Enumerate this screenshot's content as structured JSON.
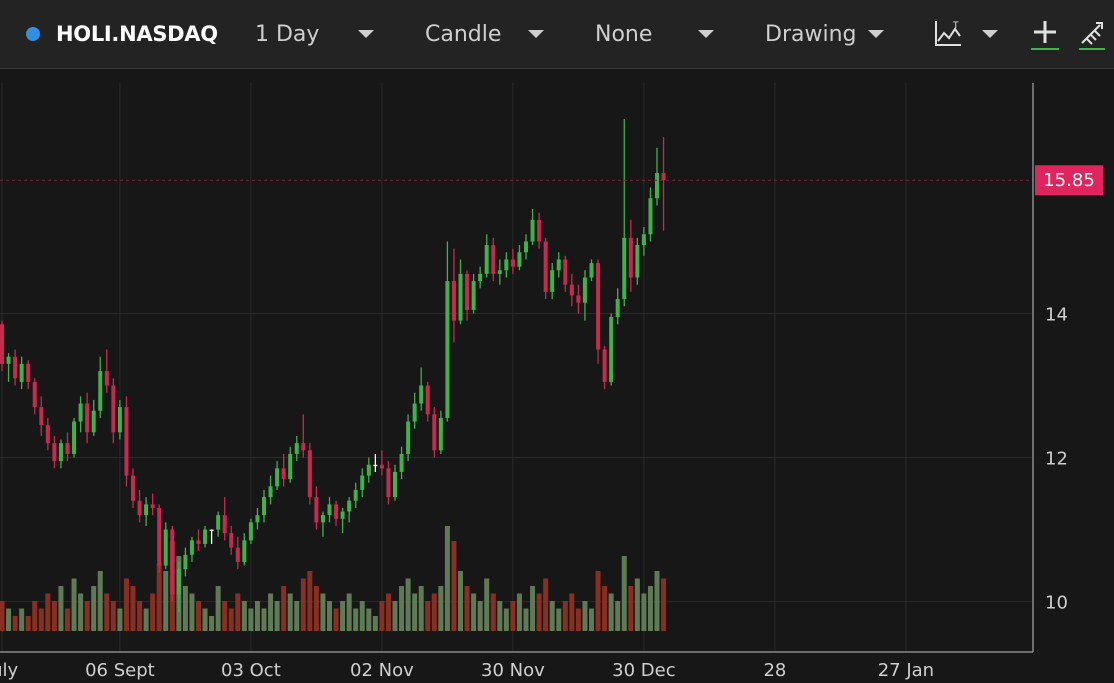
{
  "toolbar": {
    "status_color": "#2f8fe0",
    "symbol": "HOLI.NASDAQ",
    "interval": "1 Day",
    "chart_style": "Candle",
    "study": "None",
    "drawing": "Drawing",
    "icons": [
      "chart-type-icon",
      "chevron-down-icon",
      "crosshair-plus-icon",
      "drawing-tools-icon"
    ]
  },
  "chart_data": {
    "type": "candlestick",
    "ylim": [
      9.3,
      17.2
    ],
    "yticks": [
      10,
      12,
      14
    ],
    "last_price": 15.85,
    "last_price_label": "15.85",
    "xticks": [
      {
        "label": "July",
        "index": 0
      },
      {
        "label": "06 Sept",
        "index": 18
      },
      {
        "label": "03 Oct",
        "index": 38
      },
      {
        "label": "02 Nov",
        "index": 58
      },
      {
        "label": "30 Nov",
        "index": 78
      },
      {
        "label": "30 Dec",
        "index": 98
      },
      {
        "label": "28",
        "index": 118
      },
      {
        "label": "27 Jan",
        "index": 138
      }
    ],
    "colors": {
      "up": "#3fb24a",
      "down": "#c8294e",
      "doji": "#ffffff",
      "vol_up": "#5f7a55",
      "vol_down": "#8a2e22",
      "badge": "#e0245e"
    },
    "candles": [
      [
        13.85,
        13.9,
        13.2,
        13.3,
        4
      ],
      [
        13.3,
        13.45,
        13.05,
        13.4,
        3
      ],
      [
        13.4,
        13.5,
        13.0,
        13.1,
        2
      ],
      [
        13.05,
        13.4,
        12.95,
        13.3,
        3
      ],
      [
        13.3,
        13.35,
        12.95,
        13.05,
        2
      ],
      [
        13.05,
        13.1,
        12.6,
        12.7,
        4
      ],
      [
        12.7,
        12.85,
        12.3,
        12.45,
        3
      ],
      [
        12.45,
        12.55,
        12.1,
        12.2,
        5
      ],
      [
        12.2,
        12.3,
        11.85,
        11.95,
        4
      ],
      [
        11.95,
        12.25,
        11.85,
        12.2,
        6
      ],
      [
        12.2,
        12.35,
        11.95,
        12.05,
        3
      ],
      [
        12.05,
        12.55,
        12.0,
        12.5,
        7
      ],
      [
        12.5,
        12.85,
        12.35,
        12.75,
        5
      ],
      [
        12.75,
        12.9,
        12.2,
        12.35,
        4
      ],
      [
        12.35,
        12.8,
        12.3,
        12.65,
        6
      ],
      [
        12.65,
        13.4,
        12.55,
        13.2,
        8
      ],
      [
        13.2,
        13.5,
        12.9,
        13.0,
        5
      ],
      [
        13.0,
        13.1,
        12.2,
        12.35,
        4
      ],
      [
        12.35,
        12.8,
        12.25,
        12.7,
        3
      ],
      [
        12.7,
        12.85,
        11.6,
        11.75,
        7
      ],
      [
        11.75,
        11.85,
        11.3,
        11.4,
        6
      ],
      [
        11.4,
        11.55,
        11.1,
        11.2,
        4
      ],
      [
        11.2,
        11.45,
        11.05,
        11.35,
        3
      ],
      [
        11.35,
        11.5,
        11.2,
        11.3,
        5
      ],
      [
        11.3,
        11.35,
        10.4,
        10.5,
        9
      ],
      [
        10.5,
        11.1,
        10.45,
        11.0,
        8
      ],
      [
        11.0,
        11.05,
        10.0,
        10.1,
        12
      ],
      [
        10.1,
        10.55,
        9.85,
        10.45,
        10
      ],
      [
        10.45,
        10.75,
        10.35,
        10.65,
        6
      ],
      [
        10.65,
        10.9,
        10.55,
        10.85,
        5
      ],
      [
        10.85,
        11.0,
        10.7,
        10.8,
        4
      ],
      [
        10.8,
        11.05,
        10.75,
        11.0,
        3
      ],
      [
        11.0,
        11.0,
        10.8,
        11.0,
        2
      ],
      [
        11.0,
        11.25,
        10.9,
        11.2,
        6
      ],
      [
        11.2,
        11.45,
        10.85,
        10.95,
        4
      ],
      [
        10.95,
        11.05,
        10.65,
        10.75,
        3
      ],
      [
        10.75,
        10.9,
        10.45,
        10.55,
        5
      ],
      [
        10.55,
        10.95,
        10.5,
        10.85,
        4
      ],
      [
        10.85,
        11.15,
        10.8,
        11.1,
        3
      ],
      [
        11.1,
        11.3,
        11.0,
        11.2,
        4
      ],
      [
        11.2,
        11.55,
        11.1,
        11.45,
        3
      ],
      [
        11.45,
        11.75,
        11.35,
        11.6,
        5
      ],
      [
        11.6,
        11.95,
        11.55,
        11.85,
        4
      ],
      [
        11.85,
        12.05,
        11.6,
        11.7,
        6
      ],
      [
        11.7,
        12.15,
        11.65,
        12.05,
        5
      ],
      [
        12.05,
        12.3,
        11.95,
        12.2,
        4
      ],
      [
        12.2,
        12.6,
        12.0,
        12.1,
        7
      ],
      [
        12.1,
        12.2,
        11.35,
        11.45,
        8
      ],
      [
        11.45,
        11.6,
        11.0,
        11.1,
        6
      ],
      [
        11.1,
        11.25,
        10.9,
        11.2,
        5
      ],
      [
        11.2,
        11.45,
        11.1,
        11.35,
        4
      ],
      [
        11.35,
        11.4,
        11.05,
        11.15,
        3
      ],
      [
        11.15,
        11.3,
        10.95,
        11.25,
        4
      ],
      [
        11.25,
        11.45,
        11.1,
        11.4,
        5
      ],
      [
        11.4,
        11.65,
        11.3,
        11.55,
        3
      ],
      [
        11.55,
        11.85,
        11.45,
        11.75,
        4
      ],
      [
        11.75,
        12.0,
        11.65,
        11.9,
        3
      ],
      [
        11.9,
        12.05,
        11.8,
        11.9,
        2
      ],
      [
        11.9,
        12.1,
        11.75,
        11.85,
        4
      ],
      [
        11.85,
        11.95,
        11.35,
        11.45,
        5
      ],
      [
        11.45,
        11.9,
        11.4,
        11.8,
        4
      ],
      [
        11.8,
        12.15,
        11.7,
        12.05,
        6
      ],
      [
        12.05,
        12.6,
        11.95,
        12.5,
        7
      ],
      [
        12.5,
        12.9,
        12.4,
        12.75,
        5
      ],
      [
        12.75,
        13.25,
        12.65,
        13.0,
        6
      ],
      [
        13.0,
        13.05,
        12.5,
        12.6,
        4
      ],
      [
        12.6,
        12.7,
        12.0,
        12.1,
        5
      ],
      [
        12.1,
        12.65,
        12.05,
        12.55,
        6
      ],
      [
        12.55,
        15.0,
        12.5,
        14.45,
        14
      ],
      [
        14.45,
        14.9,
        13.6,
        13.9,
        12
      ],
      [
        13.9,
        14.75,
        13.85,
        14.55,
        8
      ],
      [
        14.55,
        14.6,
        13.9,
        14.05,
        6
      ],
      [
        14.05,
        14.55,
        14.0,
        14.45,
        5
      ],
      [
        14.45,
        14.65,
        14.35,
        14.55,
        4
      ],
      [
        14.55,
        15.1,
        14.5,
        14.95,
        7
      ],
      [
        14.95,
        15.05,
        14.45,
        14.55,
        5
      ],
      [
        14.55,
        14.75,
        14.4,
        14.6,
        4
      ],
      [
        14.6,
        14.85,
        14.5,
        14.75,
        3
      ],
      [
        14.75,
        14.9,
        14.55,
        14.65,
        4
      ],
      [
        14.65,
        14.95,
        14.6,
        14.85,
        5
      ],
      [
        14.85,
        15.1,
        14.75,
        15.0,
        3
      ],
      [
        15.0,
        15.45,
        14.95,
        15.3,
        6
      ],
      [
        15.3,
        15.4,
        14.9,
        15.0,
        5
      ],
      [
        15.0,
        15.05,
        14.2,
        14.3,
        7
      ],
      [
        14.3,
        14.7,
        14.2,
        14.6,
        4
      ],
      [
        14.6,
        14.85,
        14.5,
        14.75,
        3
      ],
      [
        14.75,
        14.8,
        14.3,
        14.4,
        4
      ],
      [
        14.4,
        14.55,
        14.1,
        14.25,
        5
      ],
      [
        14.25,
        14.4,
        14.0,
        14.15,
        3
      ],
      [
        14.15,
        14.6,
        13.9,
        14.5,
        4
      ],
      [
        14.5,
        14.75,
        14.45,
        14.7,
        3
      ],
      [
        14.7,
        14.75,
        13.3,
        13.5,
        8
      ],
      [
        13.5,
        13.55,
        12.95,
        13.05,
        6
      ],
      [
        13.05,
        14.0,
        13.0,
        13.95,
        5
      ],
      [
        13.95,
        14.35,
        13.85,
        14.2,
        4
      ],
      [
        14.2,
        16.7,
        14.1,
        15.05,
        10
      ],
      [
        15.05,
        15.3,
        14.3,
        14.5,
        6
      ],
      [
        14.5,
        15.05,
        14.4,
        14.95,
        7
      ],
      [
        14.95,
        15.2,
        14.8,
        15.1,
        5
      ],
      [
        15.1,
        15.75,
        15.0,
        15.6,
        6
      ],
      [
        15.6,
        16.3,
        15.5,
        15.95,
        8
      ],
      [
        15.95,
        16.45,
        15.15,
        15.85,
        7
      ]
    ]
  }
}
